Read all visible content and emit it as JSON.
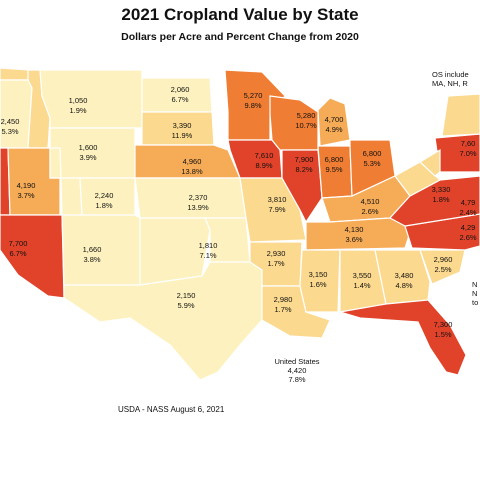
{
  "title": "2021 Cropland Value by State",
  "subtitle": "Dollars per Acre and Percent Change from 2020",
  "note": {
    "line1": "OS include",
    "line2": "MA, NH, R"
  },
  "us_total": {
    "name": "United States",
    "value": "4,420",
    "change": "7.8%"
  },
  "source": "USDA - NASS August 6, 2021",
  "edge_note": {
    "line1": "N",
    "line2": "N",
    "line3": "to"
  },
  "colors": {
    "low": "#fdf2bf",
    "mid_low": "#fbd98e",
    "mid": "#f6ab57",
    "mid_high": "#ef7d33",
    "high": "#e0432a",
    "border": "#ffffff"
  },
  "states": [
    {
      "id": "WA",
      "value": "",
      "change": ""
    },
    {
      "id": "OR",
      "value": "2,450",
      "change": "5.3%"
    },
    {
      "id": "CA",
      "value": "",
      "change": ""
    },
    {
      "id": "NV",
      "value": "4,190",
      "change": "3.7%"
    },
    {
      "id": "ID",
      "value": "",
      "change": ""
    },
    {
      "id": "AZ",
      "value": "7,700",
      "change": "6.7%"
    },
    {
      "id": "MT",
      "value": "1,050",
      "change": "1.9%"
    },
    {
      "id": "WY",
      "value": "1,600",
      "change": "3.9%"
    },
    {
      "id": "UT",
      "value": "2,240",
      "change": "1.8%"
    },
    {
      "id": "CO",
      "value": "1,660",
      "change": "3.8%"
    },
    {
      "id": "NM",
      "value": "1,810",
      "change": "7.1%"
    },
    {
      "id": "ND",
      "value": "2,060",
      "change": "6.7%"
    },
    {
      "id": "SD",
      "value": "3,390",
      "change": "11.9%"
    },
    {
      "id": "NE",
      "value": "4,960",
      "change": "13.8%"
    },
    {
      "id": "KS",
      "value": "2,370",
      "change": "13.9%"
    },
    {
      "id": "OK",
      "value": "",
      "change": ""
    },
    {
      "id": "TX",
      "value": "2,150",
      "change": "5.9%"
    },
    {
      "id": "MN",
      "value": "5,270",
      "change": "9.8%"
    },
    {
      "id": "IA",
      "value": "7,610",
      "change": "8.9%"
    },
    {
      "id": "MO",
      "value": "3,810",
      "change": "7.9%"
    },
    {
      "id": "AR",
      "value": "2,930",
      "change": "1.7%"
    },
    {
      "id": "LA",
      "value": "2,980",
      "change": "1.7%"
    },
    {
      "id": "WI",
      "value": "5,280",
      "change": "10.7%"
    },
    {
      "id": "IL",
      "value": "7,900",
      "change": "8.2%"
    },
    {
      "id": "MI",
      "value": "4,700",
      "change": "4.9%"
    },
    {
      "id": "IN",
      "value": "6,800",
      "change": "9.5%"
    },
    {
      "id": "OH",
      "value": "6,800",
      "change": "5.3%"
    },
    {
      "id": "KY",
      "value": "4,510",
      "change": "2.6%"
    },
    {
      "id": "TN",
      "value": "4,130",
      "change": "3.6%"
    },
    {
      "id": "MS",
      "value": "3,150",
      "change": "1.6%"
    },
    {
      "id": "AL",
      "value": "3,550",
      "change": "1.4%"
    },
    {
      "id": "GA",
      "value": "3,480",
      "change": "4.8%"
    },
    {
      "id": "FL",
      "value": "7,300",
      "change": "1.5%"
    },
    {
      "id": "SC",
      "value": "2,960",
      "change": "2.5%"
    },
    {
      "id": "NC",
      "value": "4,29",
      "change": "2.6%"
    },
    {
      "id": "VA",
      "value": "4,79",
      "change": "2.4%"
    },
    {
      "id": "WV",
      "value": "3,330",
      "change": "1.8%"
    },
    {
      "id": "PA",
      "value": "7,60",
      "change": "7.0%"
    },
    {
      "id": "NY",
      "value": "",
      "change": ""
    }
  ]
}
